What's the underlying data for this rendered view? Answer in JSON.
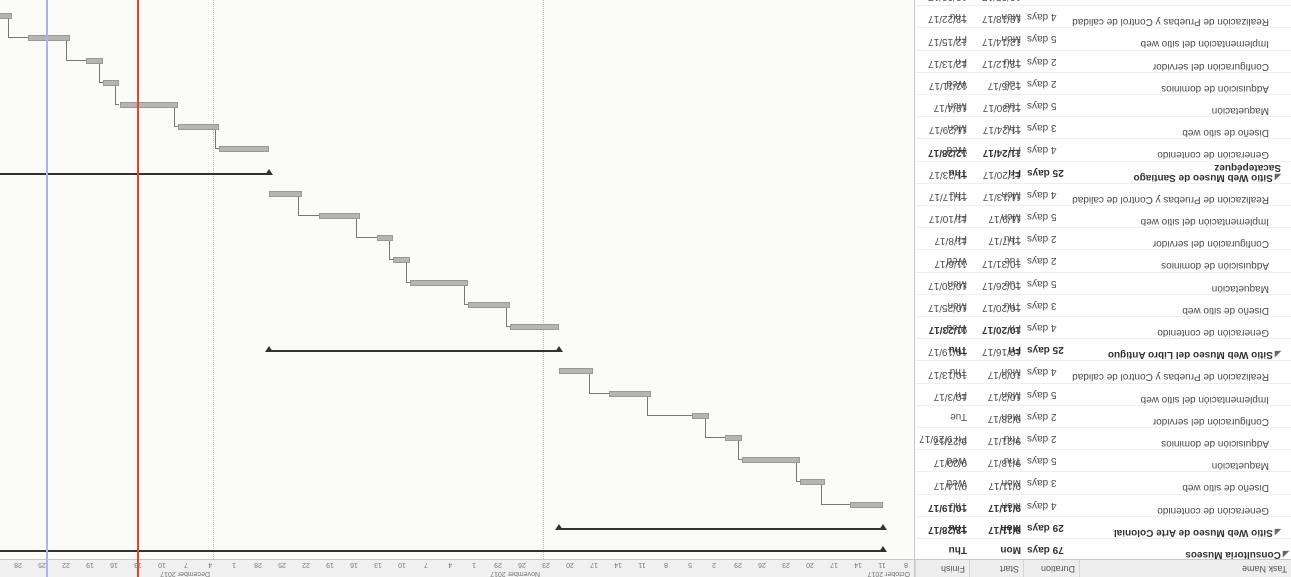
{
  "table": {
    "headers": {
      "name": "Task Name",
      "duration": "Duration",
      "start": "Start",
      "finish": "Finish"
    },
    "rows": [
      {
        "name": "Consultoría Museos",
        "duration": "79 days",
        "start": "Mon 9/11/17",
        "finish": "Thu 12/28/17",
        "level": 0,
        "summary": true
      },
      {
        "name": "Sitio Web Museo de Arte Colonial",
        "duration": "29 days",
        "start": "Mon 9/11/17",
        "finish": "Thu 10/19/17",
        "level": 1,
        "summary": true
      },
      {
        "name": "Generación de contenido",
        "duration": "4 days",
        "start": "Mon 9/11/17",
        "finish": "Thu 9/14/17",
        "level": 2
      },
      {
        "name": "Diseño de sitio web",
        "duration": "3 days",
        "start": "Mon 9/18/17",
        "finish": "Wed 9/20/17",
        "level": 2
      },
      {
        "name": "Maquetación",
        "duration": "5 days",
        "start": "Thu 9/21/17",
        "finish": "Wed 9/27/17",
        "level": 2
      },
      {
        "name": "Adquisición de dominios",
        "duration": "2 days",
        "start": "Thu 9/28/17",
        "finish": "Fri 9/29/17",
        "level": 2
      },
      {
        "name": "Configuración del servidor",
        "duration": "2 days",
        "start": "Mon 10/2/17",
        "finish": "Tue 10/3/17",
        "level": 2
      },
      {
        "name": "Implementación del sitio web",
        "duration": "5 days",
        "start": "Mon 10/9/17",
        "finish": "Fri 10/13/17",
        "level": 2
      },
      {
        "name": "Realización de Pruebas y Control de calidad",
        "duration": "4 days",
        "start": "Mon 10/16/17",
        "finish": "Thu 10/19/17",
        "level": 2
      },
      {
        "name": "Sitio Web Museo del Libro Antiguo",
        "duration": "25 days",
        "start": "Fri 10/20/17",
        "finish": "Thu 11/23/17",
        "level": 1,
        "summary": true
      },
      {
        "name": "Generación de contenido",
        "duration": "4 days",
        "start": "Fri 10/20/17",
        "finish": "Wed 10/25/17",
        "level": 2
      },
      {
        "name": "Diseño de sitio web",
        "duration": "3 days",
        "start": "Thu 10/26/17",
        "finish": "Mon 10/30/17",
        "level": 2
      },
      {
        "name": "Maquetación",
        "duration": "5 days",
        "start": "Tue 10/31/17",
        "finish": "Mon 11/6/17",
        "level": 2
      },
      {
        "name": "Adquisición de dominios",
        "duration": "2 days",
        "start": "Tue 11/7/17",
        "finish": "Wed 11/8/17",
        "level": 2
      },
      {
        "name": "Configuración del servidor",
        "duration": "2 days",
        "start": "Thu 11/9/17",
        "finish": "Fri 11/10/17",
        "level": 2
      },
      {
        "name": "Implementación del sitio web",
        "duration": "5 days",
        "start": "Mon 11/13/17",
        "finish": "Fri 11/17/17",
        "level": 2
      },
      {
        "name": "Realización de Pruebas y Control de calidad",
        "duration": "4 days",
        "start": "Mon 11/20/17",
        "finish": "Thu 11/23/17",
        "level": 2
      },
      {
        "name": "Sitio Web Museo de Santiago Sacatepéquez",
        "duration": "25 days",
        "start": "Fri 11/24/17",
        "finish": "Thu 12/28/17",
        "level": 1,
        "summary": true
      },
      {
        "name": "Generación de contenido",
        "duration": "4 days",
        "start": "Fri 11/24/17",
        "finish": "Wed 11/29/17",
        "level": 2
      },
      {
        "name": "Diseño de sitio web",
        "duration": "3 days",
        "start": "Thu 11/30/17",
        "finish": "Mon 12/4/17",
        "level": 2
      },
      {
        "name": "Maquetación",
        "duration": "5 days",
        "start": "Tue 12/5/17",
        "finish": "Mon 12/11/17",
        "level": 2
      },
      {
        "name": "Adquisición de dominios",
        "duration": "2 days",
        "start": "Tue 12/12/17",
        "finish": "Wed 12/13/17",
        "level": 2
      },
      {
        "name": "Configuración del servidor",
        "duration": "2 days",
        "start": "Thu 12/14/17",
        "finish": "Fri 12/15/17",
        "level": 2
      },
      {
        "name": "Implementación del sitio web",
        "duration": "5 days",
        "start": "Mon 12/18/17",
        "finish": "Fri 12/22/17",
        "level": 2
      },
      {
        "name": "Realización de Pruebas y Control de calidad",
        "duration": "4 days",
        "start": "Mon 12/25/17",
        "finish": "Thu 12/28/17",
        "level": 2
      }
    ]
  },
  "timescale": {
    "months": [
      "October 2017",
      "November 2017",
      "December 2017"
    ],
    "days": [
      "8",
      "11",
      "14",
      "17",
      "20",
      "23",
      "26",
      "29",
      "2",
      "5",
      "8",
      "11",
      "14",
      "17",
      "20",
      "23",
      "26",
      "29",
      "1",
      "4",
      "7",
      "10",
      "13",
      "16",
      "19",
      "22",
      "25",
      "28",
      "1",
      "4",
      "7",
      "10",
      "13",
      "16",
      "19",
      "22",
      "25",
      "28"
    ]
  },
  "colors": {
    "bar": "#b5b5b5",
    "summary": "#333333",
    "today_line": "#e0462a",
    "status_line": "#a7b7e6"
  }
}
